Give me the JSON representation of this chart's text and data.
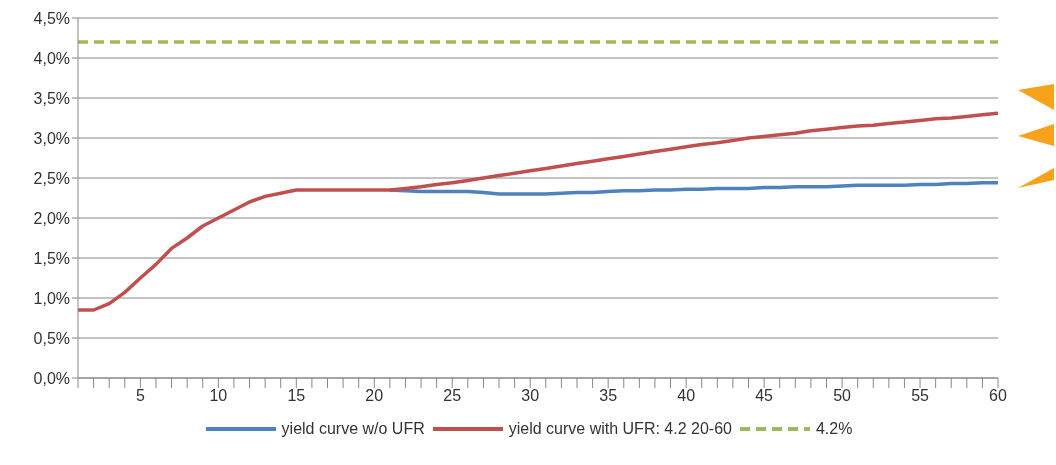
{
  "chart_data": {
    "type": "line",
    "categories": [
      null,
      null,
      null,
      null,
      "5",
      null,
      null,
      null,
      null,
      "10",
      null,
      null,
      null,
      null,
      "15",
      null,
      null,
      null,
      null,
      "20",
      null,
      null,
      null,
      null,
      "25",
      null,
      null,
      null,
      null,
      "30",
      null,
      null,
      null,
      null,
      "35",
      null,
      null,
      null,
      null,
      "40",
      null,
      null,
      null,
      null,
      "45",
      null,
      null,
      null,
      null,
      "50",
      null,
      null,
      null,
      null,
      "55",
      null,
      null,
      null,
      null,
      "60"
    ],
    "series": [
      {
        "name": "yield curve w/o UFR",
        "color": "#4f81bd",
        "line_style": "solid",
        "values": [
          null,
          null,
          null,
          null,
          null,
          null,
          null,
          null,
          null,
          null,
          null,
          null,
          null,
          null,
          null,
          null,
          null,
          null,
          null,
          null,
          2.35,
          2.34,
          2.33,
          2.33,
          2.33,
          2.33,
          2.32,
          2.3,
          2.3,
          2.3,
          2.3,
          2.31,
          2.32,
          2.32,
          2.33,
          2.34,
          2.34,
          2.35,
          2.35,
          2.36,
          2.36,
          2.37,
          2.37,
          2.37,
          2.38,
          2.38,
          2.39,
          2.39,
          2.39,
          2.4,
          2.41,
          2.41,
          2.41,
          2.41,
          2.42,
          2.42,
          2.43,
          2.43,
          2.44,
          2.44
        ]
      },
      {
        "name": "yield curve with UFR: 4.2 20-60",
        "color": "#c0504d",
        "line_style": "solid",
        "values": [
          0.85,
          0.85,
          0.93,
          1.07,
          1.25,
          1.42,
          1.62,
          1.75,
          1.9,
          2.0,
          2.1,
          2.2,
          2.27,
          2.31,
          2.35,
          2.35,
          2.35,
          2.35,
          2.35,
          2.35,
          2.35,
          2.37,
          2.39,
          2.42,
          2.44,
          2.47,
          2.5,
          2.53,
          2.56,
          2.59,
          2.62,
          2.65,
          2.68,
          2.71,
          2.74,
          2.77,
          2.8,
          2.83,
          2.86,
          2.89,
          2.92,
          2.94,
          2.97,
          3.0,
          3.02,
          3.04,
          3.06,
          3.09,
          3.11,
          3.13,
          3.15,
          3.16,
          3.18,
          3.2,
          3.22,
          3.24,
          3.25,
          3.27,
          3.29,
          3.31
        ]
      },
      {
        "name": "4.2%",
        "color": "#9bbb59",
        "line_style": "dashed",
        "values": [
          4.2,
          4.2,
          4.2,
          4.2,
          4.2,
          4.2,
          4.2,
          4.2,
          4.2,
          4.2,
          4.2,
          4.2,
          4.2,
          4.2,
          4.2,
          4.2,
          4.2,
          4.2,
          4.2,
          4.2,
          4.2,
          4.2,
          4.2,
          4.2,
          4.2,
          4.2,
          4.2,
          4.2,
          4.2,
          4.2,
          4.2,
          4.2,
          4.2,
          4.2,
          4.2,
          4.2,
          4.2,
          4.2,
          4.2,
          4.2,
          4.2,
          4.2,
          4.2,
          4.2,
          4.2,
          4.2,
          4.2,
          4.2,
          4.2,
          4.2,
          4.2,
          4.2,
          4.2,
          4.2,
          4.2,
          4.2,
          4.2,
          4.2,
          4.2,
          4.2
        ]
      }
    ],
    "ylim": [
      0,
      4.5
    ],
    "yticks": [
      {
        "value": 0,
        "label": "0,0%"
      },
      {
        "value": 0.5,
        "label": "0,5%"
      },
      {
        "value": 1,
        "label": "1,0%"
      },
      {
        "value": 1.5,
        "label": "1,5%"
      },
      {
        "value": 2,
        "label": "2,0%"
      },
      {
        "value": 2.5,
        "label": "2,5%"
      },
      {
        "value": 3,
        "label": "3,0%"
      },
      {
        "value": 3.5,
        "label": "3,5%"
      },
      {
        "value": 4,
        "label": "4,0%"
      },
      {
        "value": 4.5,
        "label": "4,5%"
      }
    ],
    "grid": "y",
    "legend": "bottom",
    "marker": "none"
  }
}
